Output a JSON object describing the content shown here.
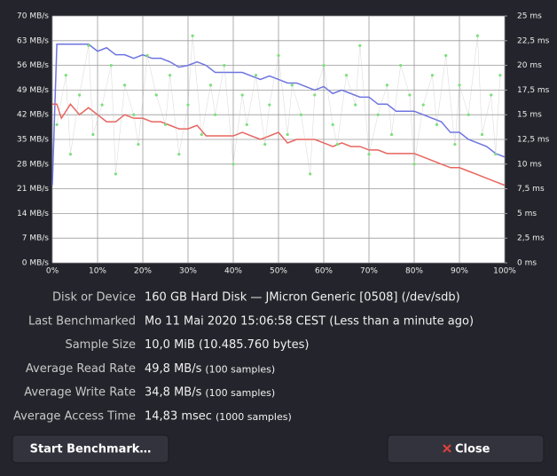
{
  "chart_data": {
    "type": "line",
    "x": [
      0,
      1,
      2,
      4,
      6,
      8,
      10,
      12,
      14,
      16,
      18,
      20,
      22,
      24,
      26,
      28,
      30,
      32,
      34,
      36,
      38,
      40,
      42,
      44,
      46,
      48,
      50,
      52,
      54,
      56,
      58,
      60,
      62,
      64,
      66,
      68,
      70,
      72,
      74,
      76,
      78,
      80,
      82,
      84,
      86,
      88,
      90,
      92,
      94,
      96,
      98,
      100
    ],
    "series": [
      {
        "color": "#6d74e0",
        "values": [
          22,
          62,
          62,
          62,
          62,
          62,
          60,
          61,
          59,
          59,
          58,
          59,
          58,
          58,
          57,
          55.5,
          56,
          57,
          56,
          54,
          54,
          54,
          54,
          53,
          52,
          53,
          52,
          51,
          51,
          50,
          49,
          50,
          48,
          49,
          48,
          47,
          47,
          45,
          45,
          43,
          43,
          43,
          42,
          41,
          40,
          37,
          37,
          35,
          34,
          33,
          31,
          30
        ]
      },
      {
        "color": "#e8655f",
        "values": [
          45,
          45,
          41,
          45,
          42,
          44,
          42,
          40,
          40,
          42,
          41,
          41,
          40,
          40,
          39,
          38,
          38,
          39,
          36,
          36,
          36,
          36,
          37,
          36,
          35,
          36,
          37,
          34,
          35,
          35,
          35,
          34,
          33,
          34,
          33,
          33,
          32,
          32,
          31,
          31,
          31,
          31,
          30,
          29,
          28,
          27,
          27,
          26,
          25,
          24,
          23,
          22
        ]
      },
      {
        "type": "scatter",
        "axis": "y2",
        "color": "#7be07b",
        "x": [
          1,
          3,
          4,
          6,
          8,
          9,
          11,
          13,
          14,
          16,
          18,
          19,
          21,
          23,
          25,
          26,
          28,
          30,
          31,
          33,
          35,
          36,
          38,
          40,
          42,
          43,
          45,
          47,
          48,
          50,
          52,
          53,
          55,
          57,
          58,
          60,
          62,
          63,
          65,
          67,
          68,
          70,
          72,
          74,
          75,
          77,
          79,
          80,
          82,
          84,
          85,
          87,
          89,
          90,
          92,
          94,
          95,
          97,
          98,
          99
        ],
        "values": [
          14,
          19,
          11,
          17,
          22,
          13,
          16,
          20,
          9,
          18,
          15,
          12,
          21,
          17,
          14,
          19,
          11,
          16,
          23,
          13,
          18,
          15,
          20,
          10,
          17,
          14,
          19,
          12,
          16,
          21,
          13,
          18,
          15,
          9,
          17,
          20,
          14,
          12,
          19,
          16,
          22,
          11,
          15,
          18,
          13,
          20,
          17,
          10,
          16,
          19,
          14,
          21,
          12,
          18,
          15,
          23,
          13,
          17,
          11,
          19
        ]
      }
    ],
    "xlim": [
      0,
      100
    ],
    "xticks": [
      {
        "value": 0,
        "label": "0%"
      },
      {
        "value": 10,
        "label": "10%"
      },
      {
        "value": 20,
        "label": "20%"
      },
      {
        "value": 30,
        "label": "30%"
      },
      {
        "value": 40,
        "label": "40%"
      },
      {
        "value": 50,
        "label": "50%"
      },
      {
        "value": 60,
        "label": "60%"
      },
      {
        "value": 70,
        "label": "70%"
      },
      {
        "value": 80,
        "label": "80%"
      },
      {
        "value": 90,
        "label": "90%"
      },
      {
        "value": 100,
        "label": "100%"
      }
    ],
    "ylim": [
      0,
      70
    ],
    "yticks": [
      {
        "value": 0,
        "label": "0 MB/s"
      },
      {
        "value": 7,
        "label": "7 MB/s"
      },
      {
        "value": 14,
        "label": "14 MB/s"
      },
      {
        "value": 21,
        "label": "21 MB/s"
      },
      {
        "value": 28,
        "label": "28 MB/s"
      },
      {
        "value": 35,
        "label": "35 MB/s"
      },
      {
        "value": 42,
        "label": "42 MB/s"
      },
      {
        "value": 49,
        "label": "49 MB/s"
      },
      {
        "value": 56,
        "label": "56 MB/s"
      },
      {
        "value": 63,
        "label": "63 MB/s"
      },
      {
        "value": 70,
        "label": "70 MB/s"
      }
    ],
    "y2lim": [
      0,
      25
    ],
    "y2ticks": [
      {
        "value": 0,
        "label": "0 ms"
      },
      {
        "value": 2.5,
        "label": "2,5 ms"
      },
      {
        "value": 5,
        "label": "5 ms"
      },
      {
        "value": 7.5,
        "label": "7,5 ms"
      },
      {
        "value": 10,
        "label": "10 ms"
      },
      {
        "value": 12.5,
        "label": "12,5 ms"
      },
      {
        "value": 15,
        "label": "15 ms"
      },
      {
        "value": 17.5,
        "label": "17,5 ms"
      },
      {
        "value": 20,
        "label": "20 ms"
      },
      {
        "value": 22.5,
        "label": "22,5 ms"
      },
      {
        "value": 25,
        "label": "25 ms"
      }
    ],
    "grid": true
  },
  "info": {
    "rows": [
      {
        "label": "Disk or Device",
        "value": "160 GB Hard Disk — JMicron Generic [0508] (/dev/sdb)"
      },
      {
        "label": "Last Benchmarked",
        "value": "Mo 11 Mai 2020 15:06:58 CEST (Less than a minute ago)"
      },
      {
        "label": "Sample Size",
        "value": "10,0 MiB (10.485.760 bytes)"
      },
      {
        "label": "Average Read Rate",
        "value": "49,8 MB/s",
        "note": "(100 samples)"
      },
      {
        "label": "Average Write Rate",
        "value": "34,8 MB/s",
        "note": "(100 samples)"
      },
      {
        "label": "Average Access Time",
        "value": "14,83 msec",
        "note": "(1000 samples)"
      }
    ]
  },
  "buttons": [
    "Start Benchmark…",
    "Close"
  ]
}
